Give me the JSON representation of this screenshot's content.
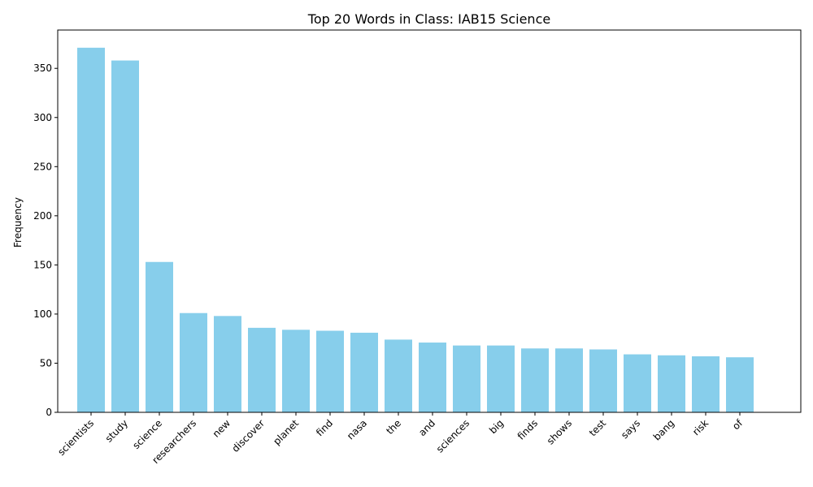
{
  "chart_data": {
    "type": "bar",
    "title": "Top 20 Words in Class: IAB15 Science",
    "xlabel": "",
    "ylabel": "Frequency",
    "categories": [
      "scientists",
      "study",
      "science",
      "researchers",
      "new",
      "discover",
      "planet",
      "find",
      "nasa",
      "the",
      "and",
      "sciences",
      "big",
      "finds",
      "shows",
      "test",
      "says",
      "bang",
      "risk",
      "of"
    ],
    "values": [
      371,
      358,
      153,
      101,
      98,
      86,
      84,
      83,
      81,
      74,
      71,
      68,
      68,
      65,
      65,
      64,
      59,
      58,
      57,
      56
    ],
    "ylim": [
      0,
      389
    ],
    "yticks": [
      0,
      50,
      100,
      150,
      200,
      250,
      300,
      350
    ],
    "bar_color": "#87ceeb",
    "grid": false,
    "legend": "none"
  }
}
